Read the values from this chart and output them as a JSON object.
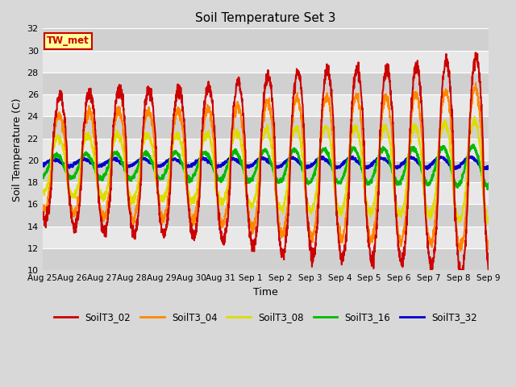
{
  "title": "Soil Temperature Set 3",
  "xlabel": "Time",
  "ylabel": "Soil Temperature (C)",
  "ylim": [
    10,
    32
  ],
  "yticks": [
    10,
    12,
    14,
    16,
    18,
    20,
    22,
    24,
    26,
    28,
    30,
    32
  ],
  "xtick_labels": [
    "Aug 25",
    "Aug 26",
    "Aug 27",
    "Aug 28",
    "Aug 29",
    "Aug 30",
    "Aug 31",
    "Sep 1",
    "Sep 2",
    "Sep 3",
    "Sep 4",
    "Sep 5",
    "Sep 6",
    "Sep 7",
    "Sep 8",
    "Sep 9"
  ],
  "colors": {
    "SoilT3_02": "#cc0000",
    "SoilT3_04": "#ff8800",
    "SoilT3_08": "#dddd00",
    "SoilT3_16": "#00bb00",
    "SoilT3_32": "#0000cc"
  },
  "bg_color": "#d8d8d8",
  "band_light": "#e8e8e8",
  "band_dark": "#d0d0d0",
  "tw_met_bg": "#ffff99",
  "tw_met_border": "#cc0000",
  "tw_met_text": "#cc0000",
  "total_hours": 360,
  "n_points": 2160,
  "figsize": [
    6.4,
    4.8
  ],
  "dpi": 100
}
